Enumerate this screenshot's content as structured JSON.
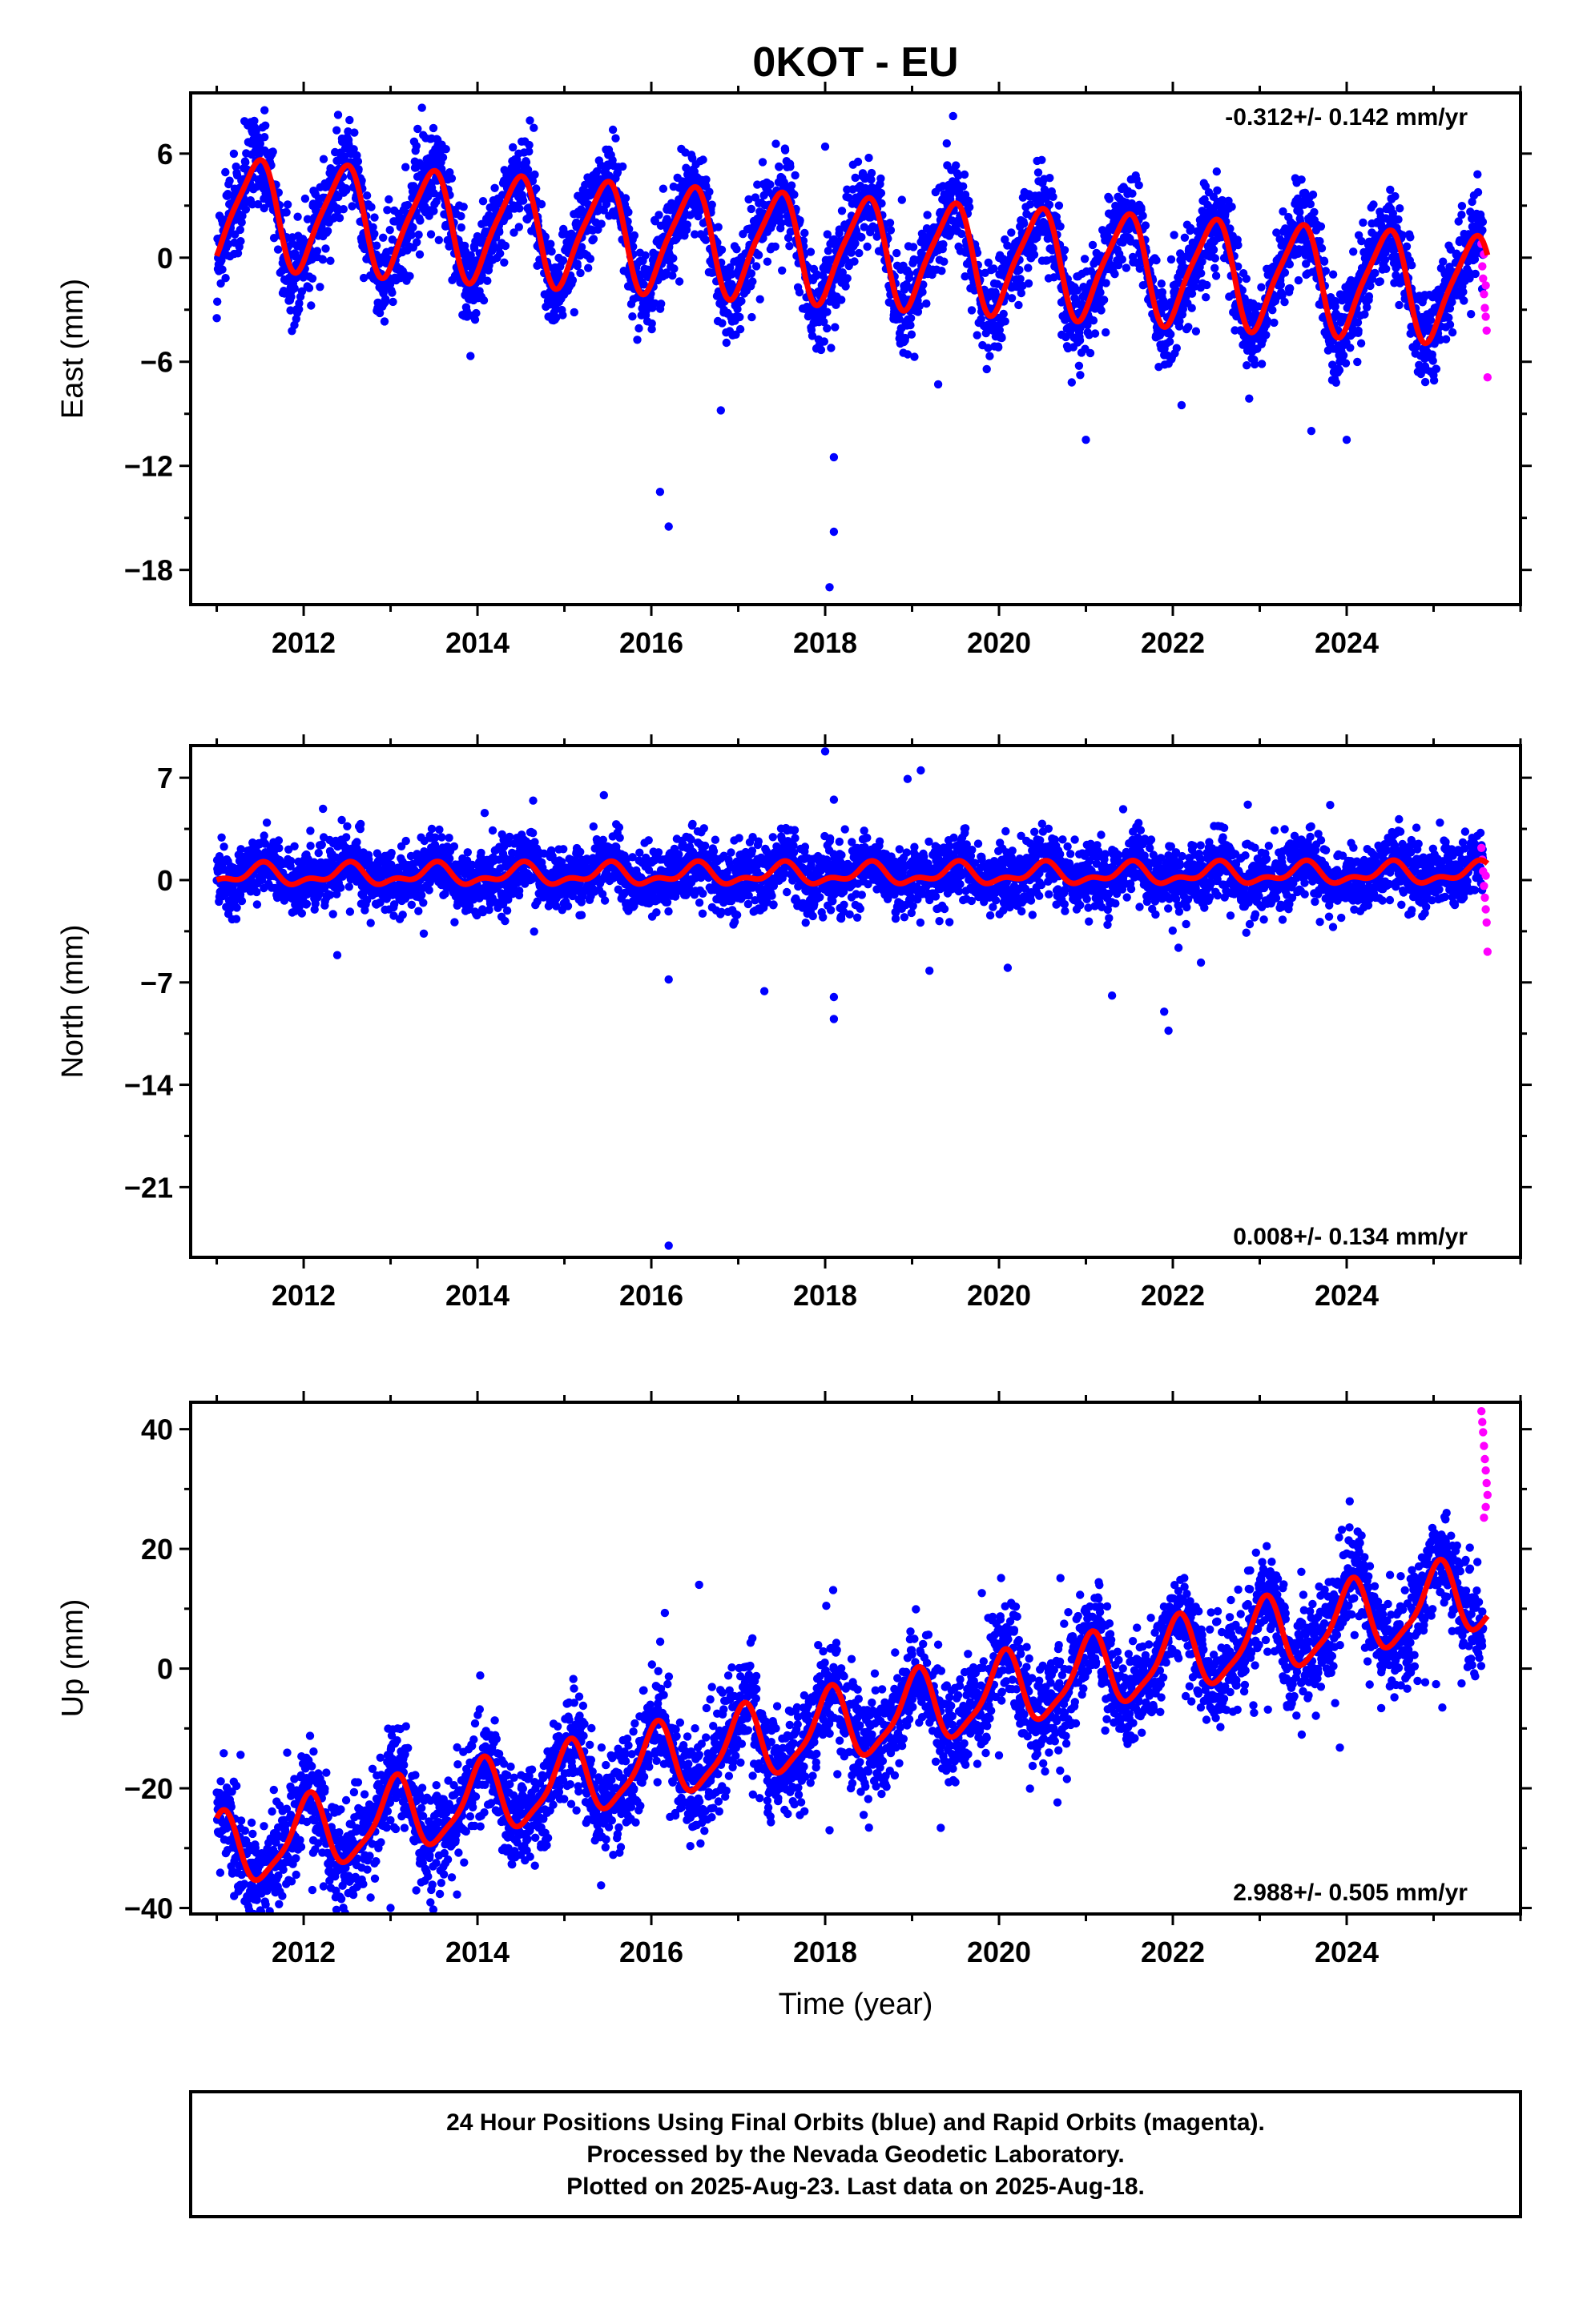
{
  "figure": {
    "title": "0KOT - EU",
    "xlabel": "Time (year)",
    "footer": [
      "24 Hour Positions Using Final Orbits (blue) and Rapid Orbits (magenta).",
      "Processed by the Nevada Geodetic Laboratory.",
      "Plotted on 2025-Aug-23. Last data on 2025-Aug-18."
    ]
  },
  "colors": {
    "final_orbits": "#0000ff",
    "rapid_orbits": "#ff00ff",
    "model_fit": "#ff0000",
    "frame": "#000000"
  },
  "chart_data": [
    {
      "type": "scatter",
      "name": "east",
      "ylabel": "East (mm)",
      "rate_label": "-0.312+/- 0.142 mm/yr",
      "rate_position": "top-right",
      "xlim": [
        2010.7,
        2026.0
      ],
      "ylim": [
        -20,
        9.5
      ],
      "xticks": [
        2012,
        2014,
        2016,
        2018,
        2020,
        2022,
        2024
      ],
      "yticks": [
        6,
        0,
        -6,
        -12,
        -18
      ],
      "ytick_labels": [
        "6",
        "0",
        "−6",
        "−12",
        "−18"
      ],
      "grid": false,
      "model": {
        "t0": 2011.0,
        "t1": 2025.62,
        "offset": 2.5,
        "trend": -0.312,
        "start_value": 0.1,
        "annual_amp": 3.0,
        "annual_phase": -1.25,
        "semiannual_amp": 0.6,
        "semiannual_phase": 0.4
      },
      "scatter_spread": 1.3,
      "outliers": [
        [
          2011.55,
          8.5
        ],
        [
          2018.0,
          6.4
        ],
        [
          2016.1,
          -13.5
        ],
        [
          2016.2,
          -15.5
        ],
        [
          2018.1,
          -11.5
        ],
        [
          2018.1,
          -15.8
        ],
        [
          2018.05,
          -19.0
        ],
        [
          2021.0,
          -10.5
        ],
        [
          2024.0,
          -10.5
        ],
        [
          2016.8,
          -8.8
        ],
        [
          2019.3,
          -7.3
        ],
        [
          2022.1,
          -8.5
        ]
      ],
      "rapid_points": [
        [
          2025.55,
          0.8
        ],
        [
          2025.56,
          -0.5
        ],
        [
          2025.57,
          -1.2
        ],
        [
          2025.58,
          -2.1
        ],
        [
          2025.59,
          -2.9
        ],
        [
          2025.6,
          -3.4
        ],
        [
          2025.61,
          -4.2
        ],
        [
          2025.62,
          -6.9
        ],
        [
          2025.6,
          -1.6
        ],
        [
          2025.58,
          0.2
        ]
      ]
    },
    {
      "type": "scatter",
      "name": "north",
      "ylabel": "North (mm)",
      "rate_label": "0.008+/- 0.134 mm/yr",
      "rate_position": "bottom-right",
      "xlim": [
        2010.7,
        2026.0
      ],
      "ylim": [
        -25.8,
        9.2
      ],
      "xticks": [
        2012,
        2014,
        2016,
        2018,
        2020,
        2022,
        2024
      ],
      "yticks": [
        7,
        0,
        -7,
        -14,
        -21
      ],
      "ytick_labels": [
        "7",
        "0",
        "−7",
        "−14",
        "−21"
      ],
      "grid": false,
      "model": {
        "t0": 2011.0,
        "t1": 2025.62,
        "offset": 0.0,
        "trend": 0.008,
        "start_value": 0.0,
        "annual_amp": 0.6,
        "annual_phase": -1.6,
        "semiannual_amp": 0.35,
        "semiannual_phase": 0.9
      },
      "scatter_spread": 1.1,
      "outliers": [
        [
          2018.0,
          8.8
        ],
        [
          2019.1,
          7.5
        ],
        [
          2018.1,
          5.5
        ],
        [
          2016.2,
          -25.0
        ],
        [
          2018.1,
          -8.0
        ],
        [
          2018.1,
          -9.5
        ],
        [
          2021.9,
          -9.0
        ],
        [
          2021.95,
          -10.3
        ],
        [
          2017.3,
          -7.6
        ],
        [
          2021.3,
          -7.9
        ],
        [
          2016.2,
          -6.8
        ],
        [
          2019.2,
          -6.2
        ],
        [
          2020.1,
          -6.0
        ]
      ],
      "rapid_points": [
        [
          2025.55,
          2.2
        ],
        [
          2025.56,
          1.4
        ],
        [
          2025.57,
          0.6
        ],
        [
          2025.58,
          -0.4
        ],
        [
          2025.59,
          -1.2
        ],
        [
          2025.6,
          -2.0
        ],
        [
          2025.61,
          -2.9
        ],
        [
          2025.62,
          -4.9
        ],
        [
          2025.6,
          0.3
        ]
      ]
    },
    {
      "type": "scatter",
      "name": "up",
      "ylabel": "Up (mm)",
      "rate_label": "2.988+/- 0.505 mm/yr",
      "rate_position": "bottom-right",
      "xlim": [
        2010.7,
        2026.0
      ],
      "ylim": [
        -41,
        44.5
      ],
      "xticks": [
        2012,
        2014,
        2016,
        2018,
        2020,
        2022,
        2024
      ],
      "yticks": [
        40,
        20,
        0,
        -20,
        -40
      ],
      "ytick_labels": [
        "40",
        "20",
        "0",
        "−20",
        "−40"
      ],
      "grid": false,
      "model": {
        "t0": 2011.0,
        "t1": 2025.62,
        "offset": -18.0,
        "trend": 2.988,
        "start_value": -25.0,
        "annual_amp": 6.0,
        "annual_phase": 1.3,
        "semiannual_amp": 1.5,
        "semiannual_phase": 0.2
      },
      "scatter_spread": 4.3,
      "outliers": [
        [
          2016.55,
          14.0
        ],
        [
          2018.05,
          -27.0
        ],
        [
          2019.3,
          4.0
        ],
        [
          2020.0,
          -14.5
        ],
        [
          2025.1,
          -6.5
        ],
        [
          2013.0,
          -40.0
        ],
        [
          2011.2,
          -38.0
        ],
        [
          2012.1,
          -37.0
        ],
        [
          2019.1,
          -4.8
        ]
      ],
      "rapid_points": [
        [
          2025.55,
          43.0
        ],
        [
          2025.56,
          41.2
        ],
        [
          2025.57,
          39.5
        ],
        [
          2025.58,
          37.2
        ],
        [
          2025.59,
          35.0
        ],
        [
          2025.6,
          33.1
        ],
        [
          2025.61,
          31.0
        ],
        [
          2025.62,
          29.0
        ],
        [
          2025.6,
          27.0
        ],
        [
          2025.58,
          25.2
        ]
      ]
    }
  ]
}
